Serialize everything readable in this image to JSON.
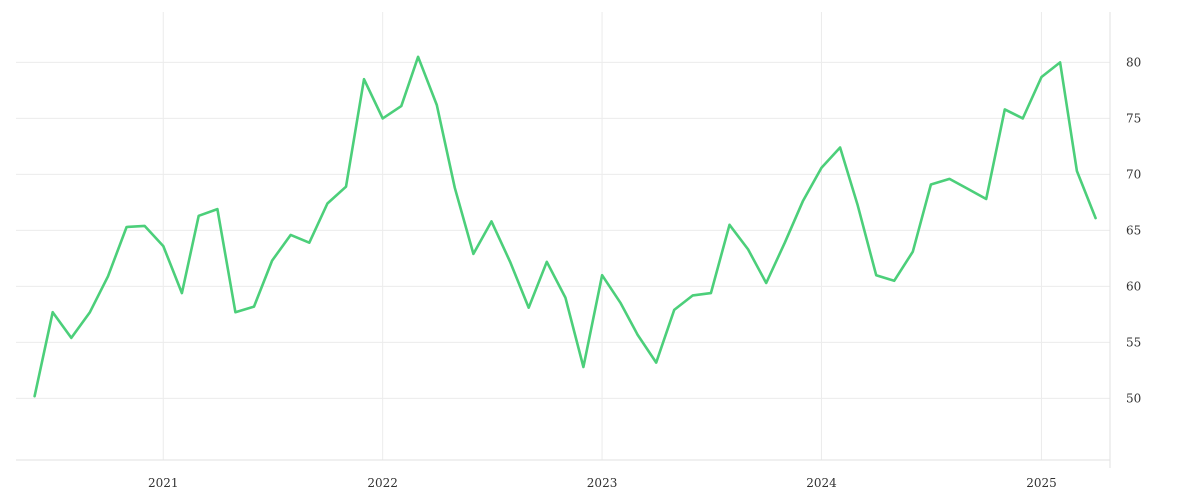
{
  "chart_data": {
    "type": "line",
    "title": "",
    "xlabel": "",
    "ylabel": "",
    "x_ticks": [
      "2021",
      "2022",
      "2023",
      "2024",
      "2025"
    ],
    "y_ticks": [
      50,
      55,
      60,
      65,
      70,
      75,
      80
    ],
    "ylim": [
      44.5,
      84.5
    ],
    "xlim": [
      "2020-05-01",
      "2025-04-25"
    ],
    "y_axis_position": "right",
    "grid": true,
    "legend": "none",
    "series": [
      {
        "color": "#4ccf7a",
        "x": [
          "2020-06-01",
          "2020-07-01",
          "2020-08-01",
          "2020-09-01",
          "2020-10-01",
          "2020-11-01",
          "2020-12-01",
          "2021-01-01",
          "2021-02-01",
          "2021-03-01",
          "2021-04-01",
          "2021-05-01",
          "2021-06-01",
          "2021-07-01",
          "2021-08-01",
          "2021-09-01",
          "2021-10-01",
          "2021-11-01",
          "2021-12-01",
          "2022-01-01",
          "2022-02-01",
          "2022-03-01",
          "2022-04-01",
          "2022-05-01",
          "2022-06-01",
          "2022-07-01",
          "2022-08-01",
          "2022-09-01",
          "2022-10-01",
          "2022-11-01",
          "2022-12-01",
          "2023-01-01",
          "2023-02-01",
          "2023-03-01",
          "2023-04-01",
          "2023-05-01",
          "2023-06-01",
          "2023-07-01",
          "2023-08-01",
          "2023-09-01",
          "2023-10-01",
          "2023-11-01",
          "2023-12-01",
          "2024-01-01",
          "2024-02-01",
          "2024-03-01",
          "2024-04-01",
          "2024-05-01",
          "2024-06-01",
          "2024-07-01",
          "2024-08-01",
          "2024-09-01",
          "2024-10-01",
          "2024-11-01",
          "2024-12-01",
          "2025-01-01",
          "2025-02-01",
          "2025-03-01",
          "2025-04-01"
        ],
        "values": [
          50.2,
          57.7,
          55.4,
          57.7,
          60.9,
          65.3,
          65.4,
          63.6,
          59.4,
          66.3,
          66.9,
          57.7,
          58.2,
          62.3,
          64.6,
          63.9,
          67.4,
          68.9,
          78.5,
          75.0,
          76.1,
          80.5,
          76.2,
          68.8,
          62.9,
          65.8,
          62.2,
          58.1,
          62.2,
          59.0,
          52.8,
          61.0,
          58.5,
          55.7,
          53.2,
          57.9,
          59.2,
          59.4,
          65.5,
          63.3,
          60.3,
          63.9,
          67.6,
          70.6,
          72.4,
          67.3,
          61.0,
          60.5,
          63.1,
          69.1,
          69.6,
          68.7,
          67.8,
          75.8,
          75.0,
          78.7,
          80.0,
          70.3,
          66.1
        ]
      }
    ]
  }
}
